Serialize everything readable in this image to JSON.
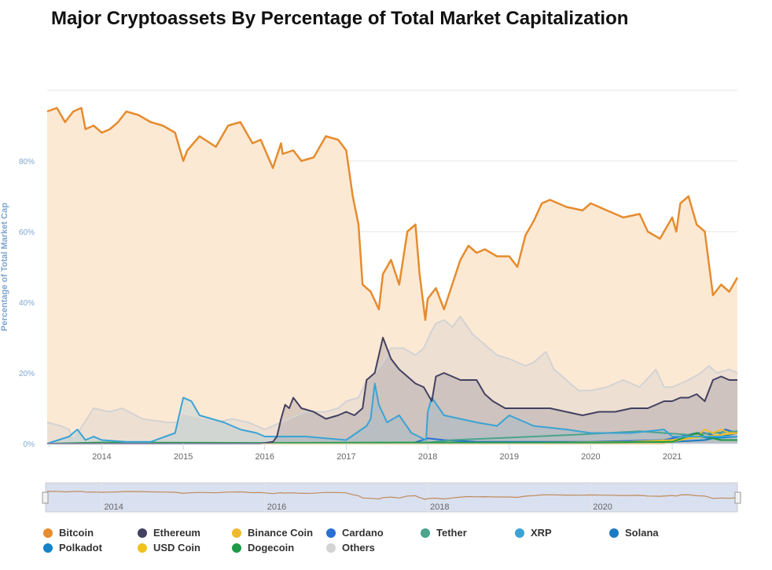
{
  "title": "Major Cryptoassets By Percentage of Total Market Capitalization",
  "chart_data": {
    "type": "area",
    "ylabel": "Percentage of Total Market Cap",
    "ylim": [
      0,
      100
    ],
    "y_ticks": [
      "0%",
      "20%",
      "40%",
      "60%",
      "80%"
    ],
    "x_range": [
      2013.33,
      2021.8
    ],
    "x_ticks": [
      "2014",
      "2015",
      "2016",
      "2017",
      "2018",
      "2019",
      "2020",
      "2021"
    ],
    "navigator_ticks": [
      "2014",
      "2016",
      "2018",
      "2020"
    ],
    "grid": true,
    "legend_position": "bottom",
    "series": [
      {
        "name": "Bitcoin",
        "color": "#e58c2e",
        "fill": "#fce9d4",
        "x": [
          2013.33,
          2013.45,
          2013.55,
          2013.65,
          2013.75,
          2013.8,
          2013.9,
          2014.0,
          2014.1,
          2014.2,
          2014.3,
          2014.45,
          2014.6,
          2014.75,
          2014.9,
          2015.0,
          2015.05,
          2015.2,
          2015.4,
          2015.55,
          2015.7,
          2015.85,
          2015.95,
          2016.1,
          2016.2,
          2016.22,
          2016.35,
          2016.45,
          2016.6,
          2016.75,
          2016.9,
          2017.0,
          2017.08,
          2017.15,
          2017.2,
          2017.3,
          2017.4,
          2017.45,
          2017.55,
          2017.65,
          2017.75,
          2017.85,
          2017.9,
          2017.97,
          2018.0,
          2018.1,
          2018.2,
          2018.3,
          2018.4,
          2018.5,
          2018.6,
          2018.7,
          2018.85,
          2019.0,
          2019.1,
          2019.2,
          2019.3,
          2019.4,
          2019.5,
          2019.7,
          2019.9,
          2020.0,
          2020.2,
          2020.4,
          2020.6,
          2020.7,
          2020.85,
          2021.0,
          2021.05,
          2021.1,
          2021.2,
          2021.3,
          2021.4,
          2021.5,
          2021.6,
          2021.7,
          2021.8
        ],
        "values": [
          94,
          95,
          91,
          94,
          95,
          89,
          90,
          88,
          89,
          91,
          94,
          93,
          91,
          90,
          88,
          80,
          83,
          87,
          84,
          90,
          91,
          85,
          86,
          78,
          85,
          82,
          83,
          80,
          81,
          87,
          86,
          83,
          70,
          62,
          45,
          43,
          38,
          48,
          52,
          45,
          60,
          62,
          48,
          35,
          41,
          44,
          38,
          45,
          52,
          56,
          54,
          55,
          53,
          53,
          50,
          59,
          63,
          68,
          69,
          67,
          66,
          68,
          66,
          64,
          65,
          60,
          58,
          64,
          60,
          68,
          70,
          62,
          60,
          42,
          45,
          43,
          47
        ]
      },
      {
        "name": "Ethereum",
        "color": "#434061",
        "fill": "rgba(67,64,97,0.18)",
        "x": [
          2013.33,
          2015.95,
          2016.1,
          2016.15,
          2016.2,
          2016.25,
          2016.3,
          2016.35,
          2016.45,
          2016.6,
          2016.75,
          2016.9,
          2017.0,
          2017.1,
          2017.2,
          2017.25,
          2017.35,
          2017.45,
          2017.55,
          2017.65,
          2017.75,
          2017.85,
          2017.95,
          2018.05,
          2018.1,
          2018.2,
          2018.3,
          2018.4,
          2018.5,
          2018.6,
          2018.7,
          2018.8,
          2018.95,
          2019.1,
          2019.3,
          2019.5,
          2019.7,
          2019.9,
          2020.1,
          2020.3,
          2020.5,
          2020.7,
          2020.9,
          2021.0,
          2021.1,
          2021.2,
          2021.3,
          2021.4,
          2021.5,
          2021.6,
          2021.7,
          2021.8
        ],
        "values": [
          0,
          0,
          0.5,
          2,
          7,
          11,
          10,
          13,
          10,
          9,
          7,
          8,
          9,
          8,
          10,
          18,
          20,
          30,
          24,
          21,
          19,
          17,
          16,
          12,
          19,
          20,
          19,
          18,
          18,
          18,
          14,
          12,
          10,
          10,
          10,
          10,
          9,
          8,
          9,
          9,
          10,
          10,
          12,
          12,
          13,
          13,
          14,
          12,
          18,
          19,
          18,
          18
        ]
      },
      {
        "name": "Binance Coin",
        "color": "#f0b92f",
        "fill": "none",
        "x": [
          2013.33,
          2020.9,
          2021.1,
          2021.3,
          2021.4,
          2021.5,
          2021.6,
          2021.7,
          2021.8
        ],
        "values": [
          0,
          0,
          1,
          2,
          4,
          3,
          4,
          3,
          3
        ]
      },
      {
        "name": "Cardano",
        "color": "#2a6fd4",
        "fill": "none",
        "x": [
          2013.33,
          2017.8,
          2018.0,
          2018.2,
          2018.6,
          2019.0,
          2020.0,
          2020.9,
          2021.1,
          2021.3,
          2021.4,
          2021.55,
          2021.65,
          2021.8
        ],
        "values": [
          0,
          0,
          1.5,
          1,
          0.5,
          0.5,
          0.5,
          1,
          2,
          3,
          3,
          2,
          4,
          3
        ]
      },
      {
        "name": "Tether",
        "color": "#4aa48e",
        "fill": "none",
        "x": [
          2013.33,
          2017.9,
          2018.3,
          2018.8,
          2019.3,
          2019.8,
          2020.2,
          2020.6,
          2020.9,
          2021.2,
          2021.5,
          2021.8
        ],
        "values": [
          0,
          0,
          1,
          1.5,
          2,
          2.5,
          3,
          3.5,
          3,
          2.5,
          3,
          3.5
        ]
      },
      {
        "name": "XRP",
        "color": "#3aa3d6",
        "fill": "rgba(58,163,214,0.15)",
        "x": [
          2013.33,
          2013.6,
          2013.7,
          2013.8,
          2013.9,
          2014.0,
          2014.3,
          2014.6,
          2014.9,
          2015.0,
          2015.1,
          2015.2,
          2015.5,
          2015.7,
          2015.9,
          2016.0,
          2016.5,
          2017.0,
          2017.25,
          2017.3,
          2017.35,
          2017.4,
          2017.5,
          2017.65,
          2017.8,
          2017.98,
          2018.0,
          2018.05,
          2018.2,
          2018.4,
          2018.6,
          2018.85,
          2019.0,
          2019.3,
          2019.7,
          2020.0,
          2020.5,
          2020.9,
          2021.0,
          2021.2,
          2021.4,
          2021.6,
          2021.8
        ],
        "values": [
          0,
          2,
          4,
          1,
          2,
          1,
          0.5,
          0.5,
          3,
          13,
          12,
          8,
          6,
          4,
          3,
          2,
          2,
          1,
          5,
          7,
          17,
          11,
          6,
          8,
          3,
          1,
          9,
          13,
          8,
          7,
          6,
          5,
          8,
          5,
          4,
          3,
          3,
          4,
          2,
          2,
          2,
          2,
          2
        ]
      },
      {
        "name": "Solana",
        "color": "#1b7cc4",
        "fill": "none",
        "x": [
          2013.33,
          2020.5,
          2021.0,
          2021.4,
          2021.6,
          2021.8
        ],
        "values": [
          0,
          0,
          0.5,
          1,
          2,
          3
        ]
      },
      {
        "name": "Polkadot",
        "color": "#1584c7",
        "fill": "none",
        "x": [
          2013.33,
          2020.7,
          2021.0,
          2021.3,
          2021.5,
          2021.8
        ],
        "values": [
          0,
          0,
          1,
          2,
          1.5,
          2
        ]
      },
      {
        "name": "USD Coin",
        "color": "#f0c21c",
        "fill": "none",
        "x": [
          2013.33,
          2018.8,
          2019.5,
          2020.5,
          2021.0,
          2021.4,
          2021.8
        ],
        "values": [
          0,
          0,
          0.3,
          0.5,
          1,
          2,
          3
        ]
      },
      {
        "name": "Dogecoin",
        "color": "#1e9a46",
        "fill": "none",
        "x": [
          2013.33,
          2014.0,
          2016.0,
          2018.0,
          2020.0,
          2021.0,
          2021.3,
          2021.4,
          2021.6,
          2021.8
        ],
        "values": [
          0,
          0.3,
          0.2,
          0.3,
          0.3,
          0.5,
          3,
          2,
          1,
          1
        ]
      },
      {
        "name": "Others",
        "color": "#d3d3d3",
        "fill": "rgba(210,210,210,0.35)",
        "x": [
          2013.33,
          2013.5,
          2013.6,
          2013.65,
          2013.9,
          2014.1,
          2014.25,
          2014.5,
          2014.8,
          2014.95,
          2015.0,
          2015.2,
          2015.4,
          2015.6,
          2015.8,
          2016.0,
          2016.3,
          2016.5,
          2016.75,
          2016.9,
          2017.0,
          2017.15,
          2017.25,
          2017.35,
          2017.45,
          2017.55,
          2017.7,
          2017.85,
          2017.95,
          2018.05,
          2018.1,
          2018.2,
          2018.3,
          2018.4,
          2018.55,
          2018.7,
          2018.85,
          2019.0,
          2019.2,
          2019.3,
          2019.45,
          2019.55,
          2019.7,
          2019.85,
          2020.0,
          2020.2,
          2020.4,
          2020.6,
          2020.8,
          2020.9,
          2021.0,
          2021.2,
          2021.35,
          2021.45,
          2021.55,
          2021.7,
          2021.8
        ],
        "values": [
          6,
          5,
          4,
          1,
          10,
          9,
          10,
          7,
          6,
          6,
          8,
          7,
          6,
          7,
          6,
          4,
          7,
          9,
          9,
          10,
          12,
          13,
          18,
          20,
          23,
          27,
          27,
          25,
          27,
          32,
          34,
          35,
          33,
          36,
          31,
          28,
          25,
          24,
          22,
          23,
          26,
          21,
          18,
          15,
          15,
          16,
          18,
          16,
          21,
          16,
          16,
          18,
          20,
          22,
          20,
          21,
          20
        ]
      }
    ]
  }
}
